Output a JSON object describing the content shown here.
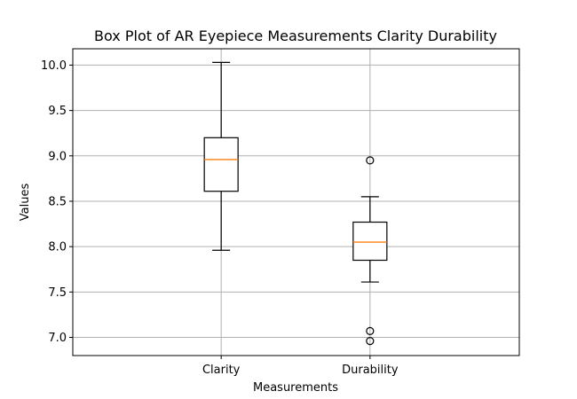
{
  "chart_data": {
    "type": "box",
    "title": "Box Plot of AR Eyepiece Measurements Clarity Durability",
    "xlabel": "Measurements",
    "ylabel": "Values",
    "categories": [
      "Clarity",
      "Durability"
    ],
    "ylim": [
      6.8,
      10.18
    ],
    "yticks": [
      7.0,
      7.5,
      8.0,
      8.5,
      9.0,
      9.5,
      10.0
    ],
    "grid": true,
    "boxes": [
      {
        "name": "Clarity",
        "whisker_low": 7.96,
        "q1": 8.61,
        "median": 8.96,
        "q3": 9.2,
        "whisker_high": 10.03,
        "outliers": []
      },
      {
        "name": "Durability",
        "whisker_low": 7.61,
        "q1": 7.85,
        "median": 8.05,
        "q3": 8.27,
        "whisker_high": 8.55,
        "outliers": [
          8.95,
          7.07,
          6.96
        ]
      }
    ],
    "colors": {
      "box": "#000000",
      "median": "#ff7f0e",
      "grid": "#b0b0b0",
      "flier": "#000000"
    }
  }
}
